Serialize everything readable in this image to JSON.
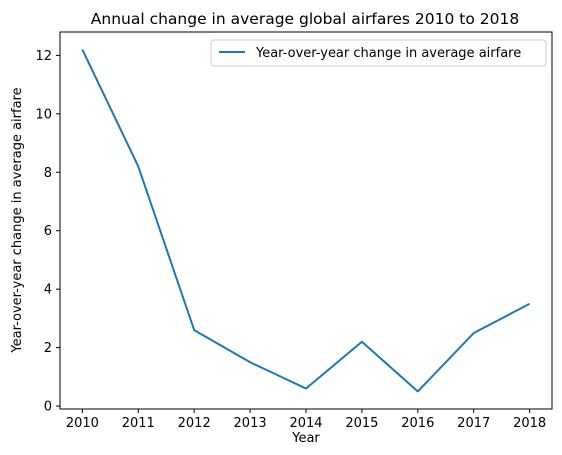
{
  "chart_data": {
    "type": "line",
    "title": "Annual change in average global airfares 2010 to 2018",
    "xlabel": "Year",
    "ylabel": "Year-over-year change in average airfare",
    "x": [
      2010,
      2011,
      2012,
      2013,
      2014,
      2015,
      2016,
      2017,
      2018
    ],
    "x_ticks": [
      "2010",
      "2011",
      "2012",
      "2013",
      "2014",
      "2015",
      "2016",
      "2017",
      "2018"
    ],
    "y_ticks": [
      "0",
      "2",
      "4",
      "6",
      "8",
      "10",
      "12"
    ],
    "y_tick_values": [
      0,
      2,
      4,
      6,
      8,
      10,
      12
    ],
    "xlim": [
      2009.6,
      2018.4
    ],
    "ylim": [
      -0.1,
      12.8
    ],
    "grid": false,
    "legend_position": "top-right",
    "series": [
      {
        "name": "Year-over-year change in average airfare",
        "color": "#1f77b4",
        "values": [
          12.2,
          8.2,
          2.6,
          1.5,
          0.6,
          2.2,
          0.5,
          2.5,
          3.5
        ]
      }
    ]
  }
}
